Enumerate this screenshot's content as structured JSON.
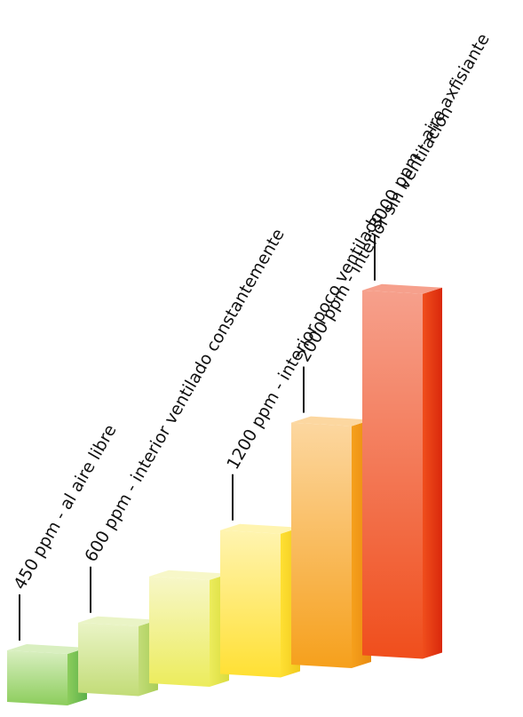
{
  "chart_data": {
    "type": "bar",
    "style": "3d-isometric",
    "categories": [
      "450 ppm - al aire libre",
      "600 ppm - interior ventilado constantemente",
      "",
      "1200 ppm - interior poco ventilado",
      "2000 ppm - interior sin ventilacion",
      "3000 ppm - aire axfisiante"
    ],
    "values": [
      450,
      600,
      900,
      1200,
      2000,
      3000
    ],
    "legend": "none",
    "grid": false,
    "colors": [
      {
        "front": "#8ccd5c",
        "side": "#5cb04a",
        "top": "#d9efc0"
      },
      {
        "front": "#c2dc77",
        "side": "#a9cd58",
        "top": "#eaf4c6"
      },
      {
        "front": "#ecec5c",
        "side": "#d9db3e",
        "top": "#f7f7c8"
      },
      {
        "front": "#ffe033",
        "side": "#f0c81c",
        "top": "#fff4b0"
      },
      {
        "front": "#f6a01c",
        "side": "#e88a10",
        "top": "#fcd7a0"
      },
      {
        "front": "#f04e1c",
        "side": "#d9280c",
        "top": "#f6a08c"
      }
    ]
  }
}
